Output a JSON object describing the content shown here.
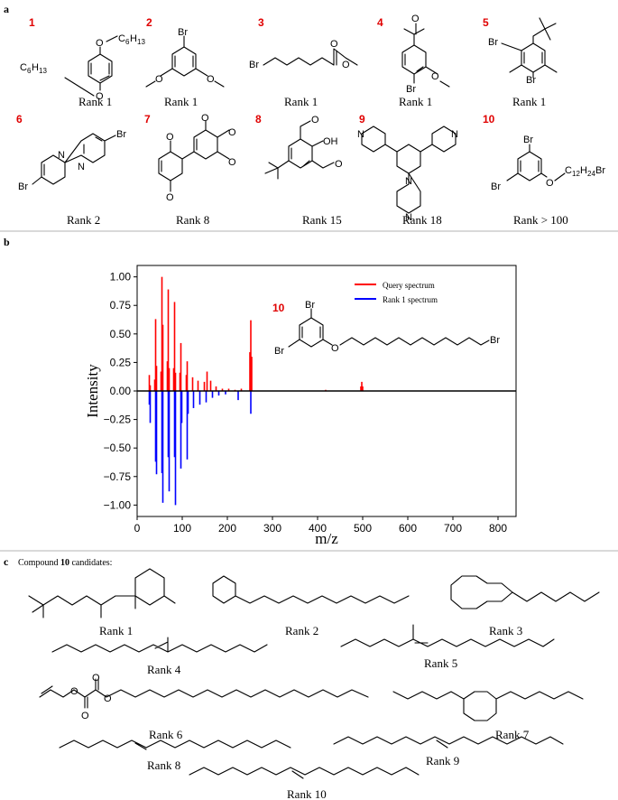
{
  "panels": {
    "a": "a",
    "b": "b",
    "c": "c"
  },
  "panel_a": {
    "items": [
      {
        "num": "1",
        "rank": "Rank 1"
      },
      {
        "num": "2",
        "rank": "Rank 1"
      },
      {
        "num": "3",
        "rank": "Rank 1"
      },
      {
        "num": "4",
        "rank": "Rank 1"
      },
      {
        "num": "5",
        "rank": "Rank 1"
      },
      {
        "num": "6",
        "rank": "Rank 2"
      },
      {
        "num": "7",
        "rank": "Rank 8"
      },
      {
        "num": "8",
        "rank": "Rank 15"
      },
      {
        "num": "9",
        "rank": "Rank 18"
      },
      {
        "num": "10",
        "rank": "Rank > 100"
      }
    ],
    "atoms": {
      "o": "O",
      "br": "Br",
      "n": "N",
      "oh": "OH",
      "c6h13": "C",
      "c6h13_sub": "6",
      "c6h13_h": "H",
      "c6h13_sub2": "13",
      "c12h24br": "C",
      "c12_sub": "12",
      "c12_h": "H",
      "c12_sub2": "24",
      "c12_br": "Br"
    }
  },
  "chart_data": {
    "type": "bar",
    "xlabel": "m/z",
    "ylabel": "Intensity",
    "xlim": [
      0,
      840
    ],
    "ylim": [
      -1.1,
      1.1
    ],
    "xticks": [
      "0",
      "100",
      "200",
      "300",
      "400",
      "500",
      "600",
      "700",
      "800"
    ],
    "yticks": [
      "1.00",
      "0.75",
      "0.50",
      "0.25",
      "0.00",
      "−0.25",
      "−0.50",
      "−0.75",
      "−1.00"
    ],
    "legend_position": "top-right",
    "inset_compound_number": "10",
    "series": [
      {
        "name": "Query spectrum",
        "color": "#ff0000",
        "x": [
          27,
          29,
          39,
          41,
          43,
          53,
          55,
          57,
          67,
          69,
          71,
          81,
          83,
          85,
          95,
          97,
          109,
          111,
          123,
          135,
          149,
          155,
          163,
          175,
          189,
          203,
          217,
          231,
          250,
          252,
          254,
          418,
          496,
          498,
          500
        ],
        "y": [
          0.14,
          0.05,
          0.1,
          0.63,
          0.22,
          0.17,
          1.0,
          0.58,
          0.26,
          0.89,
          0.2,
          0.2,
          0.78,
          0.16,
          0.16,
          0.42,
          0.14,
          0.26,
          0.12,
          0.09,
          0.08,
          0.17,
          0.09,
          0.04,
          0.02,
          0.02,
          0.01,
          0.02,
          0.34,
          0.62,
          0.3,
          0.01,
          0.04,
          0.08,
          0.04
        ]
      },
      {
        "name": "Rank 1 spectrum",
        "color": "#0000ff",
        "x": [
          27,
          29,
          41,
          43,
          55,
          57,
          69,
          71,
          83,
          85,
          97,
          99,
          111,
          113,
          125,
          139,
          153,
          167,
          181,
          196,
          224,
          252
        ],
        "y": [
          -0.12,
          -0.28,
          -0.62,
          -0.73,
          -0.72,
          -0.98,
          -0.58,
          -0.88,
          -0.58,
          -1.0,
          -0.68,
          -0.28,
          -0.6,
          -0.2,
          -0.15,
          -0.12,
          -0.1,
          -0.06,
          -0.04,
          -0.03,
          -0.08,
          -0.2
        ]
      }
    ]
  },
  "panel_c": {
    "heading_prefix": "Compound ",
    "heading_number": "10",
    "heading_suffix": " candidates:",
    "ranks": [
      "Rank 1",
      "Rank 2",
      "Rank 3",
      "Rank 4",
      "Rank 5",
      "Rank 6",
      "Rank 7",
      "Rank 8",
      "Rank 9",
      "Rank 10"
    ]
  }
}
